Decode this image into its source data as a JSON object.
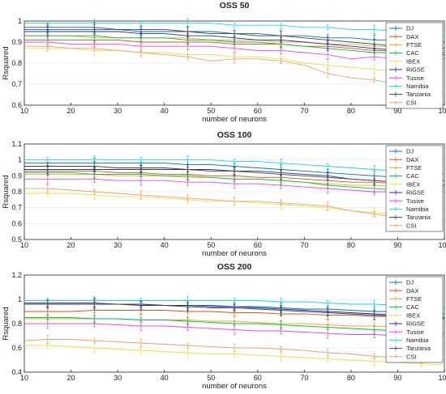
{
  "chart_data": [
    {
      "type": "line",
      "title": "OSS 50",
      "xlabel": "number of neurons",
      "ylabel": "Rsquared",
      "xlim": [
        10,
        100
      ],
      "ylim": [
        0.6,
        1
      ],
      "xticks": [
        10,
        20,
        30,
        40,
        50,
        60,
        70,
        80,
        90,
        100
      ],
      "yticks": [
        0.6,
        0.7,
        0.8,
        0.9,
        1
      ],
      "legend_position": "top-right",
      "x": [
        10,
        15,
        20,
        25,
        30,
        35,
        40,
        45,
        50,
        55,
        60,
        65,
        70,
        75,
        80,
        85,
        90,
        95,
        100
      ],
      "series": [
        {
          "name": "DJ",
          "color": "#0072bd",
          "values": [
            0.96,
            0.96,
            0.96,
            0.96,
            0.96,
            0.95,
            0.95,
            0.95,
            0.95,
            0.94,
            0.94,
            0.93,
            0.93,
            0.92,
            0.92,
            0.91,
            0.91,
            0.9,
            0.9
          ]
        },
        {
          "name": "DAX",
          "color": "#d95319",
          "values": [
            0.91,
            0.91,
            0.91,
            0.91,
            0.91,
            0.9,
            0.9,
            0.9,
            0.9,
            0.89,
            0.89,
            0.89,
            0.88,
            0.88,
            0.87,
            0.86,
            0.86,
            0.85,
            0.85
          ]
        },
        {
          "name": "FTSE",
          "color": "#edb120",
          "values": [
            0.93,
            0.93,
            0.93,
            0.92,
            0.92,
            0.92,
            0.92,
            0.92,
            0.91,
            0.91,
            0.91,
            0.9,
            0.9,
            0.89,
            0.89,
            0.88,
            0.88,
            0.87,
            0.87
          ]
        },
        {
          "name": "CAC",
          "color": "#00c040",
          "values": [
            0.93,
            0.93,
            0.93,
            0.93,
            0.92,
            0.92,
            0.92,
            0.91,
            0.91,
            0.9,
            0.9,
            0.89,
            0.88,
            0.87,
            0.86,
            0.85,
            0.85,
            0.84,
            0.84
          ]
        },
        {
          "name": "IBEX",
          "color": "#e8e040",
          "values": [
            0.87,
            0.87,
            0.87,
            0.86,
            0.86,
            0.85,
            0.85,
            0.84,
            0.84,
            0.83,
            0.83,
            0.82,
            0.8,
            0.79,
            0.78,
            0.77,
            0.76,
            0.76,
            0.75
          ]
        },
        {
          "name": "RiGSE",
          "color": "#2a2aa8",
          "values": [
            0.95,
            0.95,
            0.95,
            0.95,
            0.95,
            0.94,
            0.94,
            0.93,
            0.93,
            0.92,
            0.91,
            0.91,
            0.9,
            0.89,
            0.88,
            0.87,
            0.86,
            0.85,
            0.84
          ]
        },
        {
          "name": "Tusise",
          "color": "#ee44ee",
          "values": [
            0.9,
            0.9,
            0.89,
            0.89,
            0.89,
            0.88,
            0.88,
            0.88,
            0.88,
            0.87,
            0.86,
            0.86,
            0.85,
            0.84,
            0.82,
            0.83,
            0.82,
            0.82,
            0.82
          ]
        },
        {
          "name": "Namibia",
          "color": "#11dddd",
          "values": [
            0.99,
            0.99,
            0.99,
            0.99,
            0.99,
            0.99,
            0.99,
            0.99,
            0.99,
            0.98,
            0.98,
            0.98,
            0.97,
            0.97,
            0.96,
            0.96,
            0.95,
            0.94,
            0.93
          ]
        },
        {
          "name": "Tanzania",
          "color": "#444444",
          "values": [
            0.97,
            0.97,
            0.97,
            0.97,
            0.96,
            0.96,
            0.96,
            0.95,
            0.94,
            0.94,
            0.93,
            0.93,
            0.92,
            0.91,
            0.9,
            0.89,
            0.88,
            0.88,
            0.87
          ]
        },
        {
          "name": "CSI",
          "color": "#e8a070",
          "values": [
            0.88,
            0.88,
            0.87,
            0.87,
            0.86,
            0.85,
            0.84,
            0.83,
            0.81,
            0.82,
            0.82,
            0.81,
            0.79,
            0.75,
            0.73,
            0.72,
            0.7,
            0.69,
            0.66
          ]
        }
      ]
    },
    {
      "type": "line",
      "title": "OSS 100",
      "xlabel": "number of neurons",
      "ylabel": "Rsquared",
      "xlim": [
        10,
        100
      ],
      "ylim": [
        0.5,
        1.1
      ],
      "xticks": [
        10,
        20,
        30,
        40,
        50,
        60,
        70,
        80,
        90,
        100
      ],
      "yticks": [
        0.5,
        0.6,
        0.7,
        0.8,
        0.9,
        1,
        1.1
      ],
      "legend_position": "top-right",
      "x": [
        10,
        15,
        20,
        25,
        30,
        35,
        40,
        45,
        50,
        55,
        60,
        65,
        70,
        75,
        80,
        85,
        90,
        95,
        100
      ],
      "series": [
        {
          "name": "DJ",
          "color": "#0072bd",
          "values": [
            0.98,
            0.98,
            0.98,
            0.98,
            0.98,
            0.98,
            0.98,
            0.97,
            0.97,
            0.96,
            0.95,
            0.94,
            0.93,
            0.92,
            0.91,
            0.9,
            0.89,
            0.88,
            0.87
          ]
        },
        {
          "name": "DAX",
          "color": "#d95319",
          "values": [
            0.93,
            0.93,
            0.93,
            0.93,
            0.92,
            0.92,
            0.91,
            0.91,
            0.9,
            0.9,
            0.89,
            0.89,
            0.88,
            0.87,
            0.86,
            0.86,
            0.85,
            0.84,
            0.84
          ]
        },
        {
          "name": "FTSE",
          "color": "#edb120",
          "values": [
            0.91,
            0.91,
            0.91,
            0.91,
            0.9,
            0.9,
            0.9,
            0.89,
            0.89,
            0.88,
            0.88,
            0.87,
            0.86,
            0.85,
            0.84,
            0.84,
            0.83,
            0.82,
            0.82
          ]
        },
        {
          "name": "CAC",
          "color": "#00c040",
          "values": [
            0.92,
            0.92,
            0.92,
            0.91,
            0.91,
            0.91,
            0.9,
            0.9,
            0.89,
            0.88,
            0.88,
            0.87,
            0.86,
            0.84,
            0.83,
            0.82,
            0.81,
            0.8,
            0.8
          ]
        },
        {
          "name": "IBEX",
          "color": "#e8e040",
          "values": [
            0.79,
            0.79,
            0.79,
            0.78,
            0.77,
            0.77,
            0.76,
            0.75,
            0.74,
            0.74,
            0.73,
            0.72,
            0.71,
            0.7,
            0.68,
            0.67,
            0.66,
            0.65,
            0.64
          ]
        },
        {
          "name": "RiGSE",
          "color": "#2a2aa8",
          "values": [
            0.94,
            0.94,
            0.94,
            0.94,
            0.94,
            0.94,
            0.94,
            0.94,
            0.94,
            0.93,
            0.93,
            0.92,
            0.91,
            0.9,
            0.88,
            0.87,
            0.86,
            0.85,
            0.84
          ]
        },
        {
          "name": "Tusise",
          "color": "#ee44ee",
          "values": [
            0.88,
            0.88,
            0.88,
            0.88,
            0.87,
            0.87,
            0.87,
            0.86,
            0.86,
            0.85,
            0.85,
            0.84,
            0.83,
            0.82,
            0.81,
            0.8,
            0.8,
            0.8,
            0.8
          ]
        },
        {
          "name": "Namibia",
          "color": "#11dddd",
          "values": [
            1.0,
            1.0,
            1.0,
            1.0,
            1.0,
            1.0,
            1.0,
            1.0,
            1.0,
            0.99,
            0.99,
            0.98,
            0.97,
            0.96,
            0.95,
            0.94,
            0.93,
            0.92,
            0.91
          ]
        },
        {
          "name": "Tanzania",
          "color": "#444444",
          "values": [
            0.96,
            0.96,
            0.96,
            0.96,
            0.95,
            0.95,
            0.95,
            0.94,
            0.93,
            0.93,
            0.92,
            0.91,
            0.9,
            0.89,
            0.88,
            0.87,
            0.86,
            0.85,
            0.84
          ]
        },
        {
          "name": "CSI",
          "color": "#e8a070",
          "values": [
            0.82,
            0.82,
            0.81,
            0.8,
            0.79,
            0.78,
            0.77,
            0.76,
            0.75,
            0.74,
            0.74,
            0.73,
            0.72,
            0.71,
            0.68,
            0.66,
            0.64,
            0.63,
            0.62
          ]
        }
      ]
    },
    {
      "type": "line",
      "title": "OSS 200",
      "xlabel": "number of neurons",
      "ylabel": "Rsquared",
      "xlim": [
        10,
        100
      ],
      "ylim": [
        0.4,
        1.2
      ],
      "xticks": [
        10,
        20,
        30,
        40,
        50,
        60,
        70,
        80,
        90,
        100
      ],
      "yticks": [
        0.4,
        0.6,
        0.8,
        1,
        1.2
      ],
      "legend_position": "top-right",
      "x": [
        10,
        15,
        20,
        25,
        30,
        35,
        40,
        45,
        50,
        55,
        60,
        65,
        70,
        75,
        80,
        85,
        90,
        95,
        100
      ],
      "series": [
        {
          "name": "DJ",
          "color": "#0072bd",
          "values": [
            0.96,
            0.96,
            0.96,
            0.96,
            0.96,
            0.96,
            0.95,
            0.95,
            0.95,
            0.94,
            0.94,
            0.93,
            0.92,
            0.92,
            0.91,
            0.9,
            0.9,
            0.89,
            0.88
          ]
        },
        {
          "name": "DAX",
          "color": "#d95319",
          "values": [
            0.9,
            0.9,
            0.9,
            0.91,
            0.91,
            0.91,
            0.91,
            0.9,
            0.9,
            0.89,
            0.89,
            0.88,
            0.88,
            0.87,
            0.87,
            0.86,
            0.86,
            0.85,
            0.85
          ]
        },
        {
          "name": "FTSE",
          "color": "#edb120",
          "values": [
            0.84,
            0.84,
            0.84,
            0.84,
            0.84,
            0.83,
            0.83,
            0.83,
            0.82,
            0.82,
            0.81,
            0.8,
            0.8,
            0.79,
            0.78,
            0.78,
            0.77,
            0.76,
            0.76
          ]
        },
        {
          "name": "CAC",
          "color": "#00c040",
          "values": [
            0.85,
            0.85,
            0.85,
            0.84,
            0.84,
            0.83,
            0.83,
            0.82,
            0.81,
            0.8,
            0.8,
            0.79,
            0.78,
            0.77,
            0.76,
            0.75,
            0.74,
            0.73,
            0.72
          ]
        },
        {
          "name": "IBEX",
          "color": "#e8e040",
          "values": [
            0.62,
            0.62,
            0.61,
            0.6,
            0.59,
            0.58,
            0.57,
            0.56,
            0.55,
            0.55,
            0.54,
            0.53,
            0.52,
            0.51,
            0.5,
            0.49,
            0.48,
            0.47,
            0.46
          ]
        },
        {
          "name": "RiGSE",
          "color": "#2a2aa8",
          "values": [
            0.96,
            0.96,
            0.96,
            0.96,
            0.96,
            0.95,
            0.95,
            0.95,
            0.94,
            0.94,
            0.93,
            0.92,
            0.91,
            0.9,
            0.89,
            0.88,
            0.87,
            0.86,
            0.85
          ]
        },
        {
          "name": "Tusise",
          "color": "#ee44ee",
          "values": [
            0.8,
            0.8,
            0.8,
            0.8,
            0.79,
            0.78,
            0.78,
            0.77,
            0.76,
            0.75,
            0.74,
            0.74,
            0.73,
            0.72,
            0.71,
            0.71,
            0.7,
            0.7,
            0.7
          ]
        },
        {
          "name": "Namibia",
          "color": "#11dddd",
          "values": [
            0.99,
            0.99,
            0.99,
            0.99,
            0.99,
            0.99,
            0.99,
            0.99,
            0.99,
            0.99,
            0.99,
            0.98,
            0.98,
            0.97,
            0.96,
            0.96,
            0.95,
            0.94,
            0.93
          ]
        },
        {
          "name": "Tanzania",
          "color": "#444444",
          "values": [
            0.97,
            0.97,
            0.97,
            0.97,
            0.96,
            0.96,
            0.95,
            0.94,
            0.93,
            0.93,
            0.92,
            0.91,
            0.9,
            0.89,
            0.88,
            0.87,
            0.86,
            0.85,
            0.84
          ]
        },
        {
          "name": "CSI",
          "color": "#e8a070",
          "values": [
            0.66,
            0.67,
            0.67,
            0.66,
            0.65,
            0.64,
            0.63,
            0.62,
            0.61,
            0.6,
            0.6,
            0.59,
            0.58,
            0.56,
            0.55,
            0.53,
            0.52,
            0.51,
            0.5
          ]
        }
      ]
    }
  ]
}
